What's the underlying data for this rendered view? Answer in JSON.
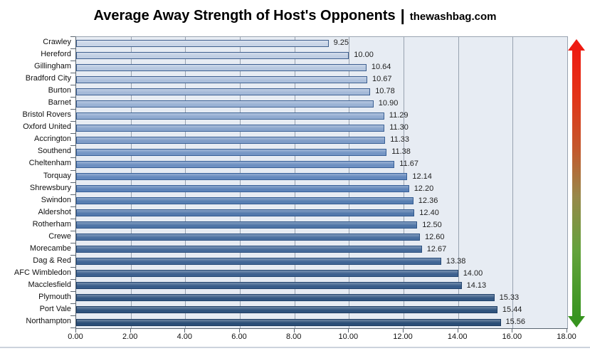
{
  "title": {
    "main": "Average Away Strength of Host's Opponents",
    "separator": "|",
    "source": "thewashbag.com"
  },
  "chart_data": {
    "type": "bar",
    "orientation": "horizontal",
    "title": "Average Away Strength of Host's Opponents",
    "source": "thewashbag.com",
    "categories": [
      "Crawley",
      "Hereford",
      "Gillingham",
      "Bradford City",
      "Burton",
      "Barnet",
      "Bristol Rovers",
      "Oxford United",
      "Accrington",
      "Southend",
      "Cheltenham",
      "Torquay",
      "Shrewsbury",
      "Swindon",
      "Aldershot",
      "Rotherham",
      "Crewe",
      "Morecambe",
      "Dag & Red",
      "AFC Wimbledon",
      "Macclesfield",
      "Plymouth",
      "Port Vale",
      "Northampton"
    ],
    "values": [
      9.25,
      10.0,
      10.64,
      10.67,
      10.78,
      10.9,
      11.29,
      11.3,
      11.33,
      11.38,
      11.67,
      12.14,
      12.2,
      12.36,
      12.4,
      12.5,
      12.6,
      12.67,
      13.38,
      14.0,
      14.13,
      15.33,
      15.44,
      15.56
    ],
    "value_labels": [
      "9.25",
      "10.00",
      "10.64",
      "10.67",
      "10.78",
      "10.90",
      "11.29",
      "11.30",
      "11.33",
      "11.38",
      "11.67",
      "12.14",
      "12.20",
      "12.36",
      "12.40",
      "12.50",
      "12.60",
      "12.67",
      "13.38",
      "14.00",
      "14.13",
      "15.33",
      "15.44",
      "15.56"
    ],
    "xlim": [
      0,
      18
    ],
    "xtick_labels": [
      "0.00",
      "2.00",
      "4.00",
      "6.00",
      "8.00",
      "10.00",
      "12.00",
      "14.00",
      "16.00",
      "18.00"
    ],
    "grid": "vertical",
    "legend_position": "none",
    "sort_order": "ascending",
    "colors": {
      "plot_background": "#e7ecf3",
      "gridline": "#98a2b0",
      "axis_line": "#5a6570",
      "bar_fill_stops": [
        "#c9d5e7",
        "#5e85bb",
        "#2b4e77"
      ],
      "bar_border_stops": [
        "#3f5f8d",
        "#36609a",
        "#1e3c60"
      ],
      "value_text": "#1f1f1f",
      "arrow_top": "#ee1b12",
      "arrow_bottom": "#37941f"
    }
  }
}
